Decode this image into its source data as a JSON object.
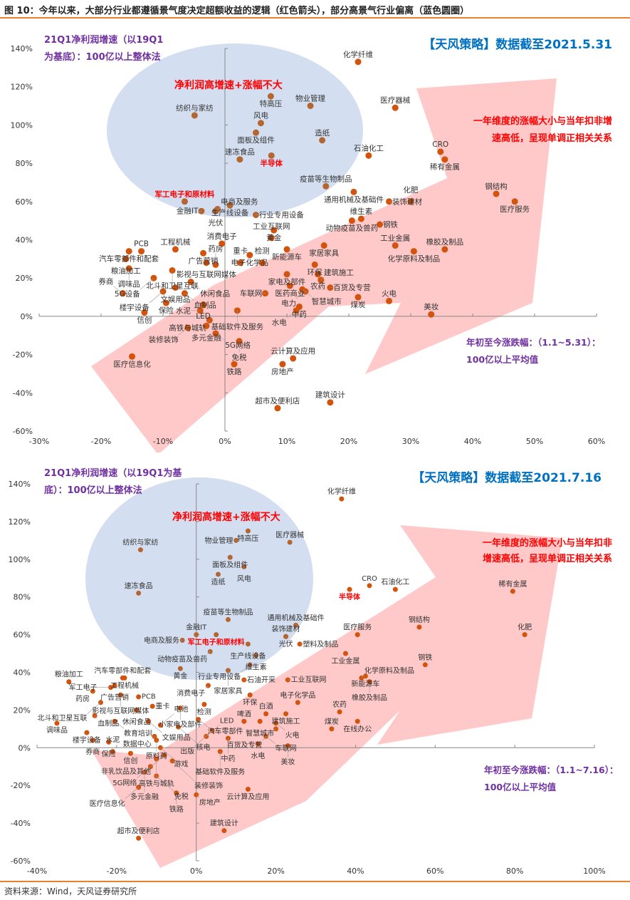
{
  "figure": {
    "title": "图 10：今年以来，大部分行业都遵循景气度决定超额收益的逻辑（红色箭头），部分高景气行业偏离（蓝色圆圈）",
    "source": "资料来源：Wind，天风证券研究所"
  },
  "colors": {
    "point_in_circle": "#b5652f",
    "point_in_arrow": "#d4530c",
    "circle_fill": "#d3dff0",
    "arrow_fill": "#ffc9c9",
    "purple_text": "#7030a0",
    "red_text": "#ff0000",
    "blue_text": "#0070c0",
    "axis": "#888888"
  },
  "chart_data": [
    {
      "type": "scatter",
      "id": "panel-1",
      "stamp": "【天风策略】数据截至2021.5.31",
      "ylabel_lines": [
        "21Q1净利润增速（以19Q1",
        "为基底）：100亿以上整体法"
      ],
      "xlabel_lines": [
        "年初至今涨跌幅：（1.1~5.31）：",
        "100亿以上平均值"
      ],
      "circle_label": "净利润高增速+涨幅不大",
      "arrow_label_lines": [
        "一年维度的涨幅大小与当年扣非增",
        "速高低，呈现单调正相关关系"
      ],
      "xlim": [
        -30,
        60
      ],
      "ylim": [
        -60,
        140
      ],
      "x_ticks": [
        "-30%",
        "-20%",
        "-10%",
        "0%",
        "10%",
        "20%",
        "30%",
        "40%",
        "50%",
        "60%"
      ],
      "y_ticks": [
        "140%",
        "120%",
        "100%",
        "80%",
        "60%",
        "40%",
        "20%",
        "0%",
        "-20%",
        "-40%",
        "-60%"
      ],
      "points": [
        {
          "label": "化学纤维",
          "x": 21.5,
          "y": 133
        },
        {
          "label": "医疗器械",
          "x": 27.5,
          "y": 109
        },
        {
          "label": "物业管理",
          "x": 13.8,
          "y": 110
        },
        {
          "label": "纺织与家纺",
          "x": -4.9,
          "y": 105
        },
        {
          "label": "特高压",
          "x": 7.4,
          "y": 115
        },
        {
          "label": "面板及组件",
          "x": 5.0,
          "y": 96
        },
        {
          "label": "风电",
          "x": 5.8,
          "y": 101
        },
        {
          "label": "造纸",
          "x": 15.7,
          "y": 92
        },
        {
          "label": "速冻食品",
          "x": 2.4,
          "y": 82
        },
        {
          "label": "半导体",
          "x": 7.5,
          "y": 84,
          "highlight": true
        },
        {
          "label": "CRO",
          "x": 34.8,
          "y": 86
        },
        {
          "label": "稀有金属",
          "x": 35.5,
          "y": 82
        },
        {
          "label": "石油化工",
          "x": 23.2,
          "y": 84
        },
        {
          "label": "疫苗等生物制品",
          "x": 16.3,
          "y": 68
        },
        {
          "label": "通用机械及基础件",
          "x": 20.8,
          "y": 65
        },
        {
          "label": "装饰建材",
          "x": 26.5,
          "y": 60
        },
        {
          "label": "化肥",
          "x": 30.0,
          "y": 60
        },
        {
          "label": "钢结构",
          "x": 43.8,
          "y": 64
        },
        {
          "label": "医疗服务",
          "x": 46.8,
          "y": 60
        },
        {
          "label": "动物疫苗及兽药",
          "x": 20.5,
          "y": 50
        },
        {
          "label": "维生素",
          "x": 22.0,
          "y": 51
        },
        {
          "label": "钢铁",
          "x": 25.0,
          "y": 48
        },
        {
          "label": "工业金属",
          "x": 27.5,
          "y": 37
        },
        {
          "label": "化学原料及制品",
          "x": 30.5,
          "y": 34
        },
        {
          "label": "橡胶及制品",
          "x": 35.5,
          "y": 35
        },
        {
          "label": "军工电子和原材料",
          "x": -6.5,
          "y": 60,
          "highlight": true
        },
        {
          "label": "金融IT",
          "x": -3.8,
          "y": 55
        },
        {
          "label": "光伏",
          "x": -1.5,
          "y": 55
        },
        {
          "label": "生产线设备",
          "x": 0.8,
          "y": 58
        },
        {
          "label": "电商及服务",
          "x": -1.2,
          "y": 56
        },
        {
          "label": "行业专用设备",
          "x": 5.0,
          "y": 53
        },
        {
          "label": "黄金",
          "x": 7.9,
          "y": 45
        },
        {
          "label": "工业互联网",
          "x": 7.5,
          "y": 41
        },
        {
          "label": "家居家具",
          "x": 16.0,
          "y": 37
        },
        {
          "label": "新能源车",
          "x": 10.0,
          "y": 35
        },
        {
          "label": "环保",
          "x": 14.5,
          "y": 27
        },
        {
          "label": "农药",
          "x": 15.0,
          "y": 22
        },
        {
          "label": "煤炭",
          "x": 21.5,
          "y": 10
        },
        {
          "label": "火电",
          "x": 26.5,
          "y": 8
        },
        {
          "label": "美妆",
          "x": 33.3,
          "y": 1
        },
        {
          "label": "建筑施工",
          "x": 15.5,
          "y": 19
        },
        {
          "label": "百货及专营",
          "x": 17.0,
          "y": 15
        },
        {
          "label": "智慧城市",
          "x": 12.5,
          "y": 14
        },
        {
          "label": "电子化学品",
          "x": 4.0,
          "y": 32
        },
        {
          "label": "重卡",
          "x": 2.5,
          "y": 28
        },
        {
          "label": "检测",
          "x": 6.0,
          "y": 28
        },
        {
          "label": "家电及部件",
          "x": 10.0,
          "y": 22
        },
        {
          "label": "医药商业",
          "x": 10.5,
          "y": 16
        },
        {
          "label": "电力",
          "x": 13.0,
          "y": 13
        },
        {
          "label": "车联网",
          "x": 6.5,
          "y": 12
        },
        {
          "label": "水电",
          "x": 11.5,
          "y": 3
        },
        {
          "label": "中药",
          "x": 12.0,
          "y": 5
        },
        {
          "label": "PCB",
          "x": -13.5,
          "y": 34
        },
        {
          "label": "工程机械",
          "x": -8.0,
          "y": 35
        },
        {
          "label": "广告营销",
          "x": -3.5,
          "y": 33
        },
        {
          "label": "消费电子",
          "x": -0.5,
          "y": 38
        },
        {
          "label": "影视与互联网媒体",
          "x": -3.0,
          "y": 28
        },
        {
          "label": "药房",
          "x": -1.5,
          "y": 27
        },
        {
          "label": "汽车零部件和配套",
          "x": -15.5,
          "y": 34
        },
        {
          "label": "粮油加工",
          "x": -16.0,
          "y": 30
        },
        {
          "label": "北斗和卫星互联",
          "x": -8.5,
          "y": 24
        },
        {
          "label": "5G设备",
          "x": -11.5,
          "y": 20
        },
        {
          "label": "休闲食品",
          "x": -5.5,
          "y": 18
        },
        {
          "label": "文娱用品",
          "x": -8.0,
          "y": 15
        },
        {
          "label": "调味品",
          "x": -15.5,
          "y": 25
        },
        {
          "label": "楼宇设备",
          "x": -10.0,
          "y": 13
        },
        {
          "label": "血制品",
          "x": -6.5,
          "y": 12
        },
        {
          "label": "券商",
          "x": -16.5,
          "y": 12
        },
        {
          "label": "保险",
          "x": -9.5,
          "y": 7
        },
        {
          "label": "信创",
          "x": -13.0,
          "y": 2
        },
        {
          "label": "LED",
          "x": -3.5,
          "y": 6
        },
        {
          "label": "水泥",
          "x": -4.0,
          "y": 3
        },
        {
          "label": "高铁与城轨",
          "x": -2.5,
          "y": -2
        },
        {
          "label": "基础软件及服务",
          "x": 2.0,
          "y": 3
        },
        {
          "label": "装修装饰",
          "x": -6.0,
          "y": -6
        },
        {
          "label": "5G网络",
          "x": -1.5,
          "y": -9
        },
        {
          "label": "多元金融",
          "x": -3.0,
          "y": -5
        },
        {
          "label": "免税",
          "x": 2.3,
          "y": -13
        },
        {
          "label": "医疗信息化",
          "x": -15.0,
          "y": -21
        },
        {
          "label": "铁路",
          "x": 1.5,
          "y": -25
        },
        {
          "label": "云计算及应用",
          "x": 11.0,
          "y": -22
        },
        {
          "label": "房地产",
          "x": 9.3,
          "y": -25
        },
        {
          "label": "超市及便利店",
          "x": 8.5,
          "y": -48
        },
        {
          "label": "建筑设计",
          "x": 17.0,
          "y": -45
        }
      ]
    },
    {
      "type": "scatter",
      "id": "panel-2",
      "stamp": "【天风策略】数据截至2021.7.16",
      "ylabel_lines": [
        "21Q1净利润增速（以19Q1为基",
        "底）：100亿以上整体法"
      ],
      "xlabel_lines": [
        "年初至今涨跌幅：（1.1~7.16）：",
        "100亿以上平均值"
      ],
      "circle_label": "净利润高增速+涨幅不大",
      "arrow_label_lines": [
        "一年维度的涨幅大小与当年扣非",
        "增速高低，呈现单调正相关关系"
      ],
      "xlim": [
        -40,
        100
      ],
      "ylim": [
        -60,
        140
      ],
      "x_ticks": [
        "-40%",
        "-20%",
        "0%",
        "20%",
        "40%",
        "60%",
        "80%",
        "100%"
      ],
      "y_ticks": [
        "140%",
        "120%",
        "100%",
        "80%",
        "60%",
        "40%",
        "20%",
        "0%",
        "-20%",
        "-40%",
        "-60%"
      ],
      "points": [
        {
          "label": "化学纤维",
          "x": 36.5,
          "y": 132
        },
        {
          "label": "医疗器械",
          "x": 23.5,
          "y": 109
        },
        {
          "label": "特高压",
          "x": 13.0,
          "y": 115
        },
        {
          "label": "物业管理",
          "x": 10.0,
          "y": 110
        },
        {
          "label": "纺织与家纺",
          "x": -14.0,
          "y": 105
        },
        {
          "label": "面板及组件",
          "x": 8.5,
          "y": 101
        },
        {
          "label": "风电",
          "x": 12.0,
          "y": 96
        },
        {
          "label": "造纸",
          "x": 5.5,
          "y": 92
        },
        {
          "label": "速冻食品",
          "x": -14.5,
          "y": 82
        },
        {
          "label": "半导体",
          "x": 38.5,
          "y": 84,
          "highlight": true
        },
        {
          "label": "CRO",
          "x": 43.5,
          "y": 86
        },
        {
          "label": "石油化工",
          "x": 50.0,
          "y": 84
        },
        {
          "label": "稀有金属",
          "x": 79.5,
          "y": 83
        },
        {
          "label": "化肥",
          "x": 82.5,
          "y": 60
        },
        {
          "label": "钢结构",
          "x": 56.0,
          "y": 64
        },
        {
          "label": "医疗服务",
          "x": 40.5,
          "y": 60
        },
        {
          "label": "疫苗等生物制品",
          "x": 8.0,
          "y": 68
        },
        {
          "label": "通用机械及基础件",
          "x": 25.0,
          "y": 65
        },
        {
          "label": "装饰建材",
          "x": 22.5,
          "y": 59
        },
        {
          "label": "光伏",
          "x": 22.5,
          "y": 59
        },
        {
          "label": "塑料及制品",
          "x": 26.0,
          "y": 55
        },
        {
          "label": "军工电子和原材料",
          "x": 5.0,
          "y": 60,
          "highlight": true
        },
        {
          "label": "金融IT",
          "x": 0.0,
          "y": 60
        },
        {
          "label": "动物疫苗及兽药",
          "x": 3.5,
          "y": 51
        },
        {
          "label": "生产线设备",
          "x": 13.0,
          "y": 55
        },
        {
          "label": "维生素",
          "x": 15.0,
          "y": 49
        },
        {
          "label": "电商及服务",
          "x": -3.5,
          "y": 57
        },
        {
          "label": "行业专用设备",
          "x": 13.5,
          "y": 44
        },
        {
          "label": "黄金",
          "x": -4.0,
          "y": 42
        },
        {
          "label": "钢铁",
          "x": 57.5,
          "y": 44
        },
        {
          "label": "工业金属",
          "x": 37.5,
          "y": 50
        },
        {
          "label": "化学原料及制品",
          "x": 41.5,
          "y": 37
        },
        {
          "label": "橡胶及制品",
          "x": 43.5,
          "y": 35
        },
        {
          "label": "新能源车",
          "x": 42.5,
          "y": 38
        },
        {
          "label": "消费电子",
          "x": 3.0,
          "y": 33
        },
        {
          "label": "家居家具",
          "x": 8.0,
          "y": 41
        },
        {
          "label": "工业互联网",
          "x": 23.0,
          "y": 36
        },
        {
          "label": "石油开采",
          "x": 12.0,
          "y": 36
        },
        {
          "label": "环保",
          "x": 13.5,
          "y": 28
        },
        {
          "label": "电子化学品",
          "x": 25.5,
          "y": 24
        },
        {
          "label": "农药",
          "x": 36.0,
          "y": 19
        },
        {
          "label": "在线办公",
          "x": 40.5,
          "y": 14
        },
        {
          "label": "煤炭",
          "x": 34.0,
          "y": 10
        },
        {
          "label": "建筑施工",
          "x": 22.5,
          "y": 18
        },
        {
          "label": "火电",
          "x": 20.0,
          "y": 13
        },
        {
          "label": "美妆",
          "x": 23.0,
          "y": 1
        },
        {
          "label": "白酒",
          "x": 17.5,
          "y": 18
        },
        {
          "label": "啤酒",
          "x": 12.0,
          "y": 14
        },
        {
          "label": "智慧城市",
          "x": 16.0,
          "y": 14
        },
        {
          "label": "百货及专营",
          "x": 20.0,
          "y": 10
        },
        {
          "label": "车联网",
          "x": 17.5,
          "y": 6
        },
        {
          "label": "水电",
          "x": 15.5,
          "y": 2
        },
        {
          "label": "中药",
          "x": 8.0,
          "y": 5
        },
        {
          "label": "LED",
          "x": 2.5,
          "y": 6
        },
        {
          "label": "基础软件及服务",
          "x": 6.0,
          "y": -2
        },
        {
          "label": "粮油加工",
          "x": -32.0,
          "y": 35
        },
        {
          "label": "工程机械",
          "x": -18.0,
          "y": 37
        },
        {
          "label": "军工电子",
          "x": -21.5,
          "y": 32
        },
        {
          "label": "汽车零部件和配套",
          "x": -18.5,
          "y": 37
        },
        {
          "label": "广告营销",
          "x": -20.5,
          "y": 33
        },
        {
          "label": "药房",
          "x": -26.0,
          "y": 30
        },
        {
          "label": "影视与互联网媒体",
          "x": -19.0,
          "y": 28
        },
        {
          "label": "PCB",
          "x": -14.5,
          "y": 27
        },
        {
          "label": "北斗和卫星互联",
          "x": -24.0,
          "y": 24
        },
        {
          "label": "重卡",
          "x": -11.0,
          "y": 22
        },
        {
          "label": "小家电及部件",
          "x": -4.0,
          "y": 21
        },
        {
          "label": "检测",
          "x": 2.0,
          "y": 23
        },
        {
          "label": "休闲食品",
          "x": -15.0,
          "y": 20
        },
        {
          "label": "调味品",
          "x": -35.0,
          "y": 13
        },
        {
          "label": "血制品",
          "x": -25.5,
          "y": 17
        },
        {
          "label": "教育培训",
          "x": -20.5,
          "y": 14
        },
        {
          "label": "文娱用品",
          "x": -12.0,
          "y": 14
        },
        {
          "label": "电池",
          "x": -9.0,
          "y": 12
        },
        {
          "label": "汽车零部件",
          "x": 0.5,
          "y": 15
        },
        {
          "label": "核电",
          "x": -4.5,
          "y": 11
        },
        {
          "label": "出版",
          "x": 4.0,
          "y": 9
        },
        {
          "label": "楼宇设备",
          "x": -27.5,
          "y": 8
        },
        {
          "label": "券商",
          "x": -26.0,
          "y": 4
        },
        {
          "label": "数据中心",
          "x": -10.5,
          "y": 6
        },
        {
          "label": "原料药",
          "x": -10.0,
          "y": 4
        },
        {
          "label": "游戏",
          "x": -9.0,
          "y": 0
        },
        {
          "label": "保险",
          "x": -22.0,
          "y": 3
        },
        {
          "label": "水泥",
          "x": -21.0,
          "y": -2
        },
        {
          "label": "信创",
          "x": -16.5,
          "y": -3
        },
        {
          "label": "非乳饮品及其他",
          "x": -8.0,
          "y": -4
        },
        {
          "label": "高铁与城轨",
          "x": -10.0,
          "y": -6
        },
        {
          "label": "5G网络",
          "x": -11.5,
          "y": -10
        },
        {
          "label": "装修装饰",
          "x": -6.0,
          "y": -7
        },
        {
          "label": "多元金融",
          "x": -13.0,
          "y": -13
        },
        {
          "label": "免税",
          "x": -10.0,
          "y": -15
        },
        {
          "label": "医疗信息化",
          "x": -14.5,
          "y": -21
        },
        {
          "label": "铁路",
          "x": -5.0,
          "y": -24
        },
        {
          "label": "房地产",
          "x": 0.0,
          "y": -25
        },
        {
          "label": "云计算及应用",
          "x": 13.0,
          "y": -22
        },
        {
          "label": "超市及便利店",
          "x": -14.5,
          "y": -48
        },
        {
          "label": "建筑设计",
          "x": 7.0,
          "y": -44
        }
      ]
    }
  ]
}
